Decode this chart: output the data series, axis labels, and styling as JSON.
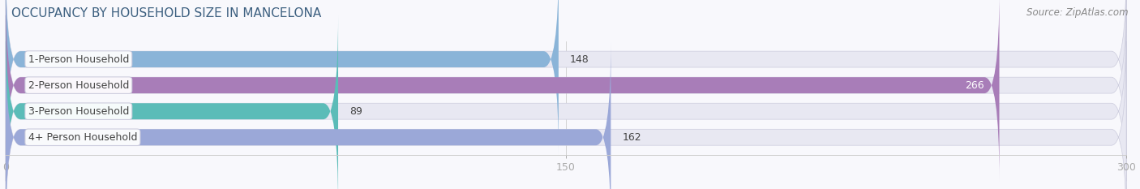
{
  "title": "OCCUPANCY BY HOUSEHOLD SIZE IN MANCELONA",
  "source": "Source: ZipAtlas.com",
  "categories": [
    "1-Person Household",
    "2-Person Household",
    "3-Person Household",
    "4+ Person Household"
  ],
  "values": [
    148,
    266,
    89,
    162
  ],
  "bar_colors": [
    "#8ab4d8",
    "#a87db8",
    "#5bbcb8",
    "#9ba8d8"
  ],
  "bar_bg_color": "#e8e8f2",
  "value_inside": [
    false,
    true,
    false,
    false
  ],
  "xlim_min": 0,
  "xlim_max": 300,
  "xticks": [
    0,
    150,
    300
  ],
  "background_color": "#f8f8fc",
  "title_fontsize": 11,
  "label_fontsize": 9,
  "value_fontsize": 9,
  "source_fontsize": 8.5,
  "title_color": "#3d6080",
  "source_color": "#888888",
  "label_text_color": "#444444",
  "value_color_outside": "#444444",
  "value_color_inside": "#ffffff"
}
